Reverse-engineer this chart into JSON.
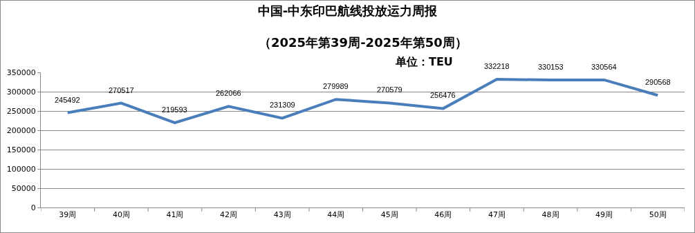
{
  "chart_data": {
    "type": "line",
    "title": "中国-中东印巴航线投放运力周报",
    "subtitle": "（2025年第39周-2025年第50周）",
    "annotations": [
      "单位：TEU"
    ],
    "categories": [
      "39周",
      "40周",
      "41周",
      "42周",
      "43周",
      "44周",
      "45周",
      "46周",
      "47周",
      "48周",
      "49周",
      "50周"
    ],
    "series": [
      {
        "color": "#4a7ebb",
        "values": [
          245492,
          270517,
          219593,
          262066,
          231309,
          279989,
          270579,
          256476,
          332218,
          330153,
          330564,
          290568
        ]
      }
    ],
    "ylim": [
      0,
      350000
    ],
    "yticks": [
      0,
      50000,
      100000,
      150000,
      200000,
      250000,
      300000,
      350000
    ],
    "grid": "y",
    "marker": "none",
    "line_style": "solid",
    "data_labels": true
  }
}
